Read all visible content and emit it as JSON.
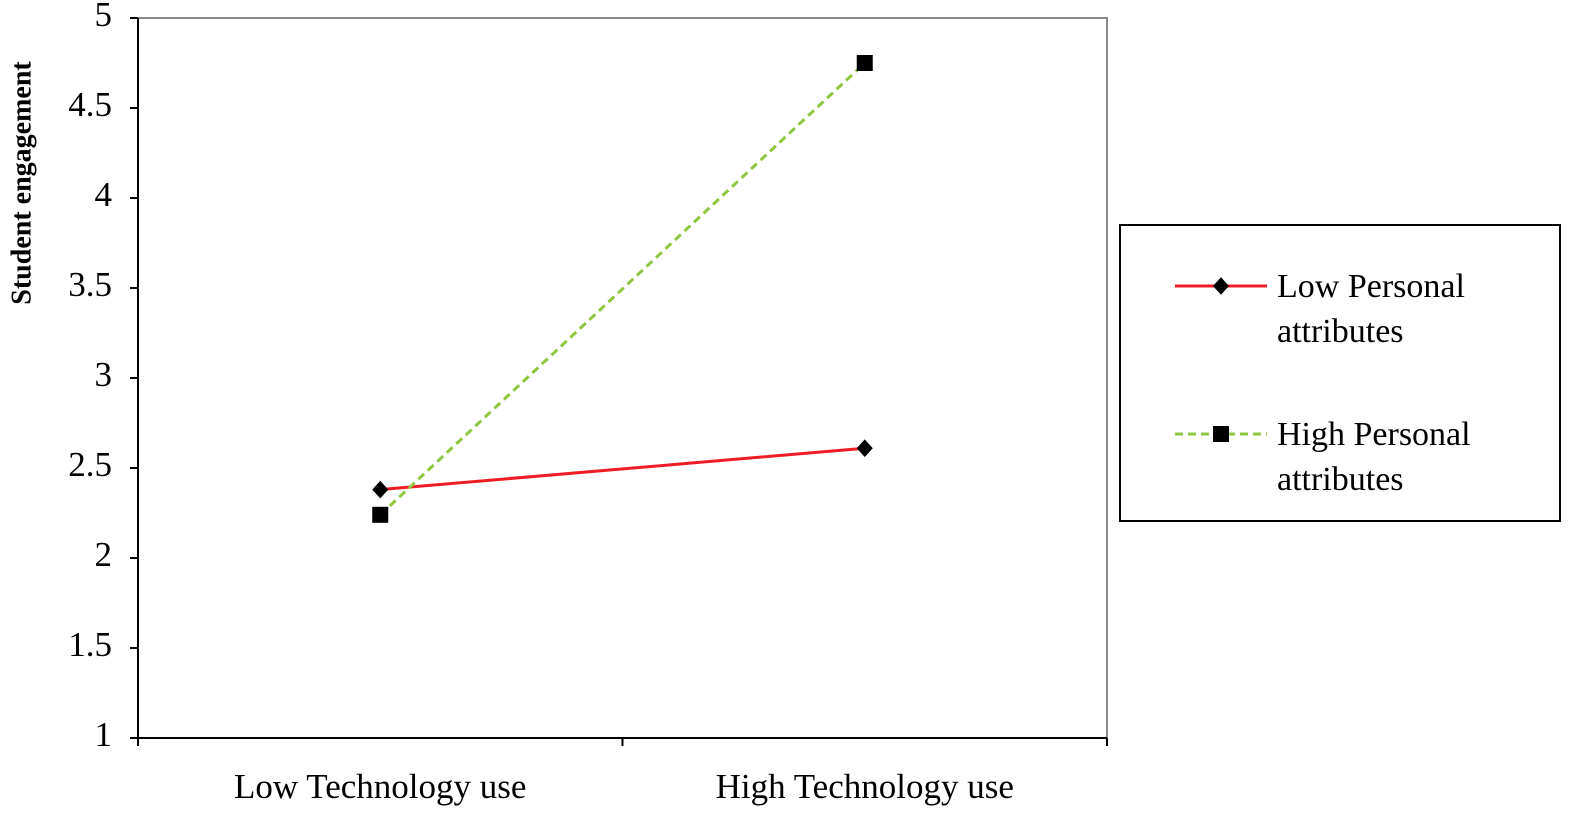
{
  "chart_data": {
    "type": "line",
    "y_label": "Student engagement",
    "categories": [
      "Low Technology use",
      "High Technology use"
    ],
    "series": [
      {
        "name": "Low Personal attributes",
        "color": "#ee1c25",
        "linestyle": "solid",
        "marker": "diamond",
        "values": [
          2.38,
          2.61
        ]
      },
      {
        "name": "High Personal attributes",
        "color": "#8dc63f",
        "linestyle": "dashed",
        "marker": "square",
        "values": [
          2.24,
          4.75
        ]
      }
    ],
    "ylim": [
      1,
      5
    ],
    "yticks": [
      1,
      1.5,
      2,
      2.5,
      3,
      3.5,
      4,
      4.5,
      5
    ],
    "grid": false,
    "legend": "right"
  }
}
